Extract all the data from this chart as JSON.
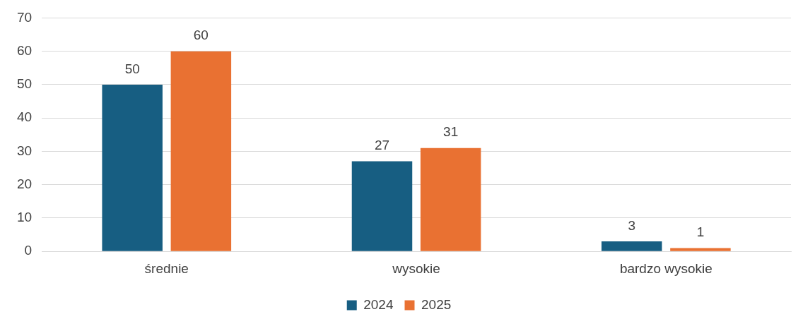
{
  "chart_data": {
    "type": "bar",
    "categories": [
      "średnie",
      "wysokie",
      "bardzo wysokie"
    ],
    "series": [
      {
        "name": "2024",
        "color": "#175e82",
        "values": [
          50,
          27,
          3
        ]
      },
      {
        "name": "2025",
        "color": "#e97132",
        "values": [
          60,
          31,
          1
        ]
      }
    ],
    "ylim": [
      0,
      70
    ],
    "yticks": [
      0,
      10,
      20,
      30,
      40,
      50,
      60,
      70
    ],
    "grid": "y",
    "legend": "bottom",
    "data_labels": true
  }
}
